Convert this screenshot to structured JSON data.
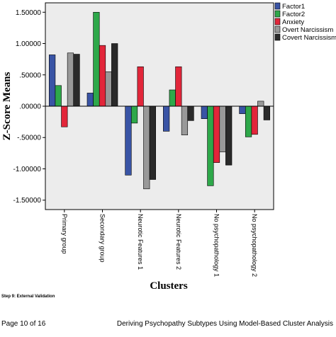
{
  "chart_data": {
    "type": "bar",
    "xlabel": "Clusters",
    "ylabel": "Z-Score Means",
    "ylim": [
      -1.65,
      1.65
    ],
    "yticks": [
      1.5,
      1.0,
      0.5,
      0.0,
      -0.5,
      -1.0,
      -1.5
    ],
    "ytick_labels": [
      "1.50000",
      "1.00000",
      ".50000",
      ".00000",
      "-.50000",
      "-1.00000",
      "-1.50000"
    ],
    "categories": [
      "Primary group",
      "Secondary group",
      "Neurotic Features 1",
      "Neurotic Features 2",
      "No psychopathology 1",
      "No psychopathology 2"
    ],
    "series": [
      {
        "name": "Factor1",
        "color": "#3954a5",
        "values": [
          0.82,
          0.21,
          -1.1,
          -0.4,
          -0.2,
          -0.12
        ]
      },
      {
        "name": "Factor2",
        "color": "#2ea84a",
        "values": [
          0.33,
          1.5,
          -0.27,
          0.26,
          -1.27,
          -0.49
        ]
      },
      {
        "name": "Anxiety",
        "color": "#e2263a",
        "values": [
          -0.33,
          0.97,
          0.63,
          0.63,
          -0.9,
          -0.45
        ]
      },
      {
        "name": "Overt Narcissism",
        "color": "#999999",
        "values": [
          0.85,
          0.55,
          -1.32,
          -0.46,
          -0.73,
          0.08
        ]
      },
      {
        "name": "Covert Narcissism",
        "color": "#2a2a2a",
        "values": [
          0.83,
          1.0,
          -1.17,
          -0.23,
          -0.94,
          -0.22
        ]
      }
    ],
    "legend_position": "top-right",
    "grid": false
  },
  "footer": {
    "step_note": "Step 9: External Validation",
    "page_number": "Page 10 of 16",
    "running_title": "Deriving Psychopathy Subtypes Using Model-Based Cluster Analysis"
  }
}
